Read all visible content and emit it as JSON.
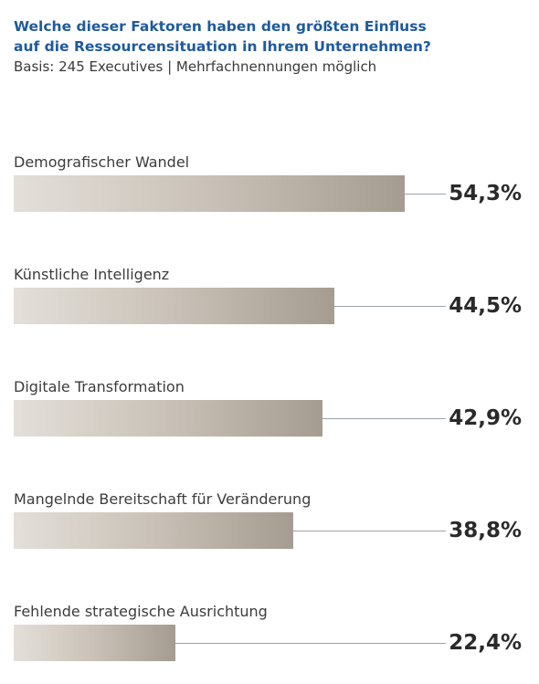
{
  "header": {
    "title": "Welche dieser Faktoren haben den größten Einfluss\nauf die Ressourcensituation in Ihrem Unternehmen?",
    "subtitle": "Basis: 245 Executives | Mehrfachnennungen möglich"
  },
  "chart_data": {
    "type": "bar",
    "orientation": "horizontal",
    "title": "Welche dieser Faktoren haben den größten Einfluss auf die Ressourcensituation in Ihrem Unternehmen?",
    "subtitle": "Basis: 245 Executives | Mehrfachnennungen möglich",
    "categories": [
      "Demografischer Wandel",
      "Künstliche Intelligenz",
      "Digitale Transformation",
      "Mangelnde Bereitschaft für Veränderung",
      "Fehlende strategische Ausrichtung"
    ],
    "values": [
      54.3,
      44.5,
      42.9,
      38.8,
      22.4
    ],
    "value_labels": [
      "54,3%",
      "44,5%",
      "42,9%",
      "38,8%",
      "22,4%"
    ],
    "unit": "%",
    "xlim": [
      0,
      100
    ],
    "xlabel": "",
    "ylabel": "",
    "grid": false,
    "legend": "none",
    "colors": {
      "bar_start": "#e3dfd9",
      "bar_end": "#a59c90",
      "title": "#1f5a9c",
      "leader_line": "#9aa4ad"
    }
  }
}
